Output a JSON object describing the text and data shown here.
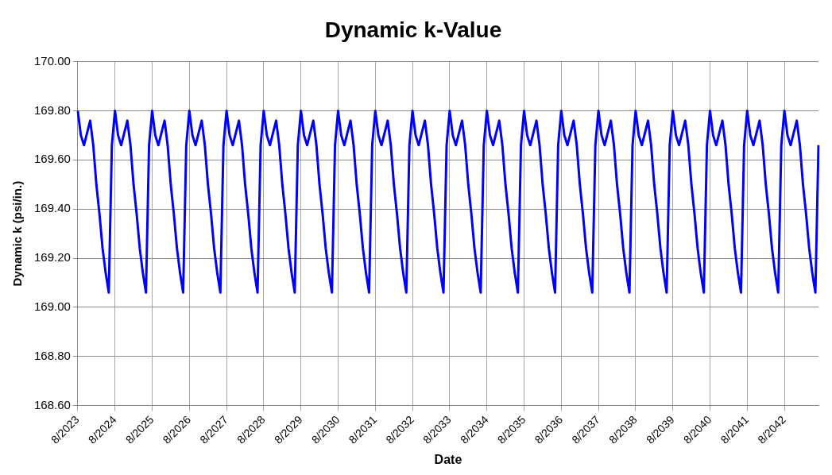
{
  "chart_data": {
    "type": "line",
    "title": "Dynamic k-Value",
    "xlabel": "Date",
    "ylabel": "Dynamic k (psi/in.)",
    "categories": [
      "8/2023",
      null,
      null,
      null,
      null,
      null,
      null,
      null,
      null,
      null,
      null,
      null,
      "8/2024",
      null,
      null,
      null,
      null,
      null,
      null,
      null,
      null,
      null,
      null,
      null,
      "8/2025",
      null,
      null,
      null,
      null,
      null,
      null,
      null,
      null,
      null,
      null,
      null,
      "8/2026",
      null,
      null,
      null,
      null,
      null,
      null,
      null,
      null,
      null,
      null,
      null,
      "8/2027",
      null,
      null,
      null,
      null,
      null,
      null,
      null,
      null,
      null,
      null,
      null,
      "8/2028",
      null,
      null,
      null,
      null,
      null,
      null,
      null,
      null,
      null,
      null,
      null,
      "8/2029",
      null,
      null,
      null,
      null,
      null,
      null,
      null,
      null,
      null,
      null,
      null,
      "8/2030",
      null,
      null,
      null,
      null,
      null,
      null,
      null,
      null,
      null,
      null,
      null,
      "8/2031",
      null,
      null,
      null,
      null,
      null,
      null,
      null,
      null,
      null,
      null,
      null,
      "8/2032",
      null,
      null,
      null,
      null,
      null,
      null,
      null,
      null,
      null,
      null,
      null,
      "8/2033",
      null,
      null,
      null,
      null,
      null,
      null,
      null,
      null,
      null,
      null,
      null,
      "8/2034",
      null,
      null,
      null,
      null,
      null,
      null,
      null,
      null,
      null,
      null,
      null,
      "8/2035",
      null,
      null,
      null,
      null,
      null,
      null,
      null,
      null,
      null,
      null,
      null,
      "8/2036",
      null,
      null,
      null,
      null,
      null,
      null,
      null,
      null,
      null,
      null,
      null,
      "8/2037",
      null,
      null,
      null,
      null,
      null,
      null,
      null,
      null,
      null,
      null,
      null,
      "8/2038",
      null,
      null,
      null,
      null,
      null,
      null,
      null,
      null,
      null,
      null,
      null,
      "8/2039",
      null,
      null,
      null,
      null,
      null,
      null,
      null,
      null,
      null,
      null,
      null,
      "8/2040",
      null,
      null,
      null,
      null,
      null,
      null,
      null,
      null,
      null,
      null,
      null,
      "8/2041",
      null,
      null,
      null,
      null,
      null,
      null,
      null,
      null,
      null,
      null,
      null,
      "8/2042",
      null,
      null,
      null,
      null,
      null,
      null,
      null,
      null,
      null,
      null,
      null
    ],
    "series": [
      {
        "color": "#0000ff",
        "values": [
          169.8,
          169.7,
          169.66,
          169.71,
          169.76,
          169.66,
          169.5,
          169.38,
          169.24,
          169.14,
          169.06,
          169.66,
          169.8,
          169.7,
          169.66,
          169.71,
          169.76,
          169.66,
          169.5,
          169.38,
          169.24,
          169.14,
          169.06,
          169.66,
          169.8,
          169.7,
          169.66,
          169.71,
          169.76,
          169.66,
          169.5,
          169.38,
          169.24,
          169.14,
          169.06,
          169.66,
          169.8,
          169.7,
          169.66,
          169.71,
          169.76,
          169.66,
          169.5,
          169.38,
          169.24,
          169.14,
          169.06,
          169.66,
          169.8,
          169.7,
          169.66,
          169.71,
          169.76,
          169.66,
          169.5,
          169.38,
          169.24,
          169.14,
          169.06,
          169.66,
          169.8,
          169.7,
          169.66,
          169.71,
          169.76,
          169.66,
          169.5,
          169.38,
          169.24,
          169.14,
          169.06,
          169.66,
          169.8,
          169.7,
          169.66,
          169.71,
          169.76,
          169.66,
          169.5,
          169.38,
          169.24,
          169.14,
          169.06,
          169.66,
          169.8,
          169.7,
          169.66,
          169.71,
          169.76,
          169.66,
          169.5,
          169.38,
          169.24,
          169.14,
          169.06,
          169.66,
          169.8,
          169.7,
          169.66,
          169.71,
          169.76,
          169.66,
          169.5,
          169.38,
          169.24,
          169.14,
          169.06,
          169.66,
          169.8,
          169.7,
          169.66,
          169.71,
          169.76,
          169.66,
          169.5,
          169.38,
          169.24,
          169.14,
          169.06,
          169.66,
          169.8,
          169.7,
          169.66,
          169.71,
          169.76,
          169.66,
          169.5,
          169.38,
          169.24,
          169.14,
          169.06,
          169.66,
          169.8,
          169.7,
          169.66,
          169.71,
          169.76,
          169.66,
          169.5,
          169.38,
          169.24,
          169.14,
          169.06,
          169.66,
          169.8,
          169.7,
          169.66,
          169.71,
          169.76,
          169.66,
          169.5,
          169.38,
          169.24,
          169.14,
          169.06,
          169.66,
          169.8,
          169.7,
          169.66,
          169.71,
          169.76,
          169.66,
          169.5,
          169.38,
          169.24,
          169.14,
          169.06,
          169.66,
          169.8,
          169.7,
          169.66,
          169.71,
          169.76,
          169.66,
          169.5,
          169.38,
          169.24,
          169.14,
          169.06,
          169.66,
          169.8,
          169.7,
          169.66,
          169.71,
          169.76,
          169.66,
          169.5,
          169.38,
          169.24,
          169.14,
          169.06,
          169.66,
          169.8,
          169.7,
          169.66,
          169.71,
          169.76,
          169.66,
          169.5,
          169.38,
          169.24,
          169.14,
          169.06,
          169.66,
          169.8,
          169.7,
          169.66,
          169.71,
          169.76,
          169.66,
          169.5,
          169.38,
          169.24,
          169.14,
          169.06,
          169.66,
          169.8,
          169.7,
          169.66,
          169.71,
          169.76,
          169.66,
          169.5,
          169.38,
          169.24,
          169.14,
          169.06,
          169.66,
          169.8,
          169.7,
          169.66,
          169.71,
          169.76,
          169.66,
          169.5,
          169.38,
          169.24,
          169.14,
          169.06,
          169.66
        ]
      }
    ],
    "ylim": [
      168.6,
      170.0
    ],
    "yticks": [
      {
        "value": 168.6,
        "label": "168.60"
      },
      {
        "value": 168.8,
        "label": "168.80"
      },
      {
        "value": 169.0,
        "label": "169.00"
      },
      {
        "value": 169.2,
        "label": "169.20"
      },
      {
        "value": 169.4,
        "label": "169.40"
      },
      {
        "value": 169.6,
        "label": "169.60"
      },
      {
        "value": 169.8,
        "label": "169.80"
      },
      {
        "value": 170.0,
        "label": "170.00"
      }
    ],
    "grid": true,
    "legend": false,
    "marker": "none",
    "line_style": "solid"
  }
}
